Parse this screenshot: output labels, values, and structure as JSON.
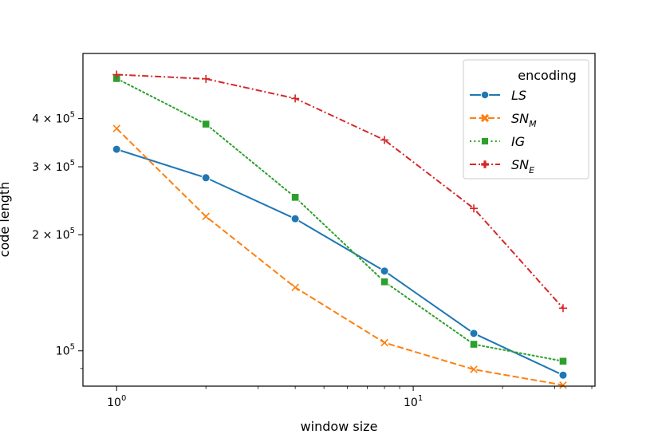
{
  "chart_data": {
    "type": "line",
    "xlabel": "window size",
    "ylabel": "code length",
    "xscale": "log",
    "yscale": "log",
    "xlim": [
      0.77,
      41.0
    ],
    "ylim": [
      81000,
      590000
    ],
    "grid": false,
    "legend_placement": "top-right",
    "legend_title": "encoding",
    "x_ticks": [
      {
        "value": 1,
        "base": "10",
        "exp": "0"
      },
      {
        "value": 10,
        "base": "10",
        "exp": "1"
      }
    ],
    "y_ticks": [
      {
        "value": 100000,
        "mant": "",
        "base": "10",
        "exp": "5"
      },
      {
        "value": 200000,
        "mant": "2 × ",
        "base": "10",
        "exp": "5"
      },
      {
        "value": 300000,
        "mant": "3 × ",
        "base": "10",
        "exp": "5"
      },
      {
        "value": 400000,
        "mant": "4 × ",
        "base": "10",
        "exp": "5"
      }
    ],
    "x": [
      1,
      2,
      4,
      8,
      16,
      32
    ],
    "series": [
      {
        "name": "LS",
        "base": "LS",
        "sub": "",
        "color": "#1f77b4",
        "marker": "circle",
        "dash": "solid",
        "values": [
          333000,
          281000,
          220000,
          161000,
          111000,
          86500
        ]
      },
      {
        "name": "SN_M",
        "base": "SN",
        "sub": "M",
        "color": "#ff7f0e",
        "marker": "x",
        "dash": "dashed",
        "values": [
          377000,
          223000,
          146000,
          105000,
          89500,
          81500
        ]
      },
      {
        "name": "IG",
        "base": "IG",
        "sub": "",
        "color": "#2ca02c",
        "marker": "square",
        "dash": "dotted",
        "values": [
          508000,
          387000,
          250000,
          151000,
          104000,
          94000
        ]
      },
      {
        "name": "SN_E",
        "base": "SN",
        "sub": "E",
        "color": "#d62728",
        "marker": "plus",
        "dash": "dashdot",
        "values": [
          520000,
          507000,
          451000,
          352000,
          234000,
          129000
        ]
      }
    ]
  }
}
